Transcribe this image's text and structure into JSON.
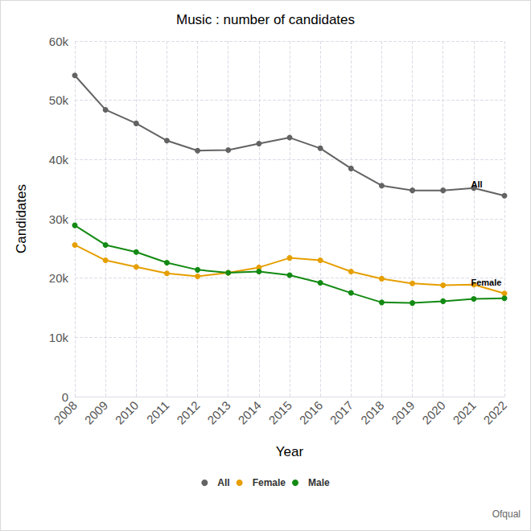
{
  "chart_data": {
    "type": "line",
    "title": "Music : number of candidates",
    "x_label": "Year",
    "y_label": "Candidates",
    "caption": "Ofqual",
    "categories": [
      "2008",
      "2009",
      "2010",
      "2011",
      "2012",
      "2013",
      "2014",
      "2015",
      "2016",
      "2017",
      "2018",
      "2019",
      "2020",
      "2021",
      "2022"
    ],
    "series": [
      {
        "name": "All",
        "color": "#636363",
        "marker": "circle",
        "values": [
          54200,
          48400,
          46100,
          43200,
          41500,
          41600,
          42700,
          43700,
          41900,
          38500,
          35600,
          34800,
          34800,
          35200,
          33900
        ]
      },
      {
        "name": "Female",
        "color": "#e69f00",
        "marker": "circle",
        "values": [
          25600,
          23000,
          21900,
          20800,
          20300,
          20900,
          21800,
          23400,
          23000,
          21100,
          19900,
          19100,
          18800,
          18900,
          17400
        ]
      },
      {
        "name": "Male",
        "color": "#138a13",
        "marker": "circle",
        "values": [
          28900,
          25600,
          24400,
          22600,
          21400,
          20900,
          21100,
          20500,
          19200,
          17500,
          15900,
          15800,
          16100,
          16500,
          16600
        ]
      }
    ],
    "annotations": [
      {
        "text": "All",
        "series": "All"
      },
      {
        "text": "Female",
        "series": "Female"
      }
    ],
    "ylim": [
      0,
      60000
    ],
    "yticks": [
      0,
      {
        "value": 10000,
        "label": "10k"
      },
      {
        "value": 20000,
        "label": "20k"
      },
      {
        "value": 30000,
        "label": "30k"
      },
      {
        "value": 40000,
        "label": "40k"
      },
      {
        "value": 50000,
        "label": "50k"
      },
      {
        "value": 60000,
        "label": "60k"
      }
    ],
    "grid": true,
    "legend": "bottom"
  }
}
